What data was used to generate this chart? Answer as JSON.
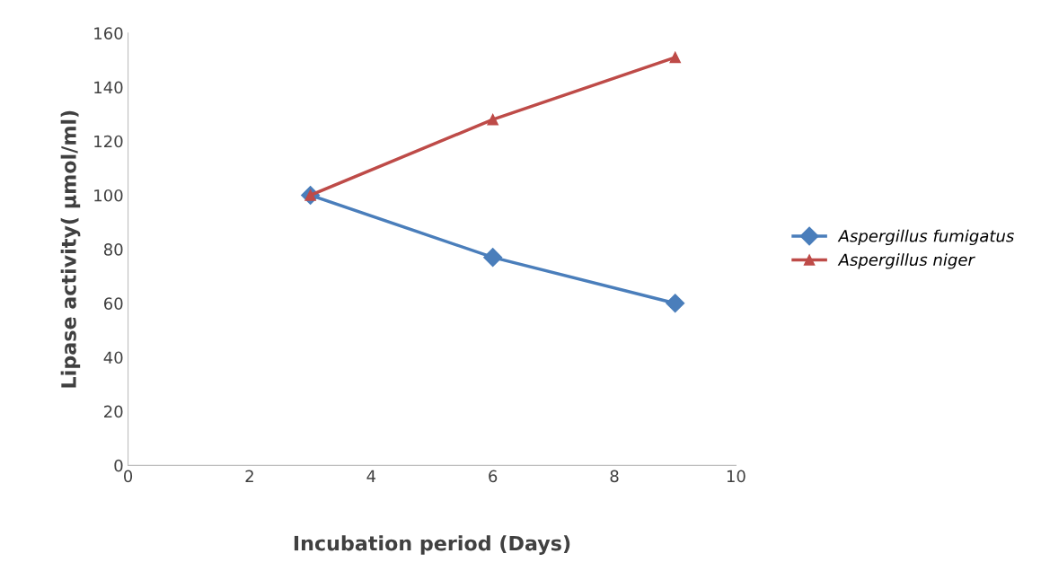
{
  "chart_data": {
    "type": "line",
    "xlabel": "Incubation period (Days)",
    "ylabel": "Lipase activity( µmol/ml)",
    "x": [
      3,
      6,
      9
    ],
    "series": [
      {
        "name": "Aspergillus fumigatus",
        "color": "#4a7ebb",
        "values": [
          100,
          77,
          60
        ],
        "marker": "diamond"
      },
      {
        "name": "Aspergillus niger",
        "color": "#be4b48",
        "values": [
          100,
          128,
          151
        ],
        "marker": "triangle"
      }
    ],
    "xlim": [
      0,
      10
    ],
    "xticks": [
      0,
      2,
      4,
      6,
      8,
      10
    ],
    "ylim": [
      0,
      160
    ],
    "yticks": [
      0,
      20,
      40,
      60,
      80,
      100,
      120,
      140,
      160
    ],
    "grid": false,
    "legend": "right",
    "line_style": "solid"
  }
}
